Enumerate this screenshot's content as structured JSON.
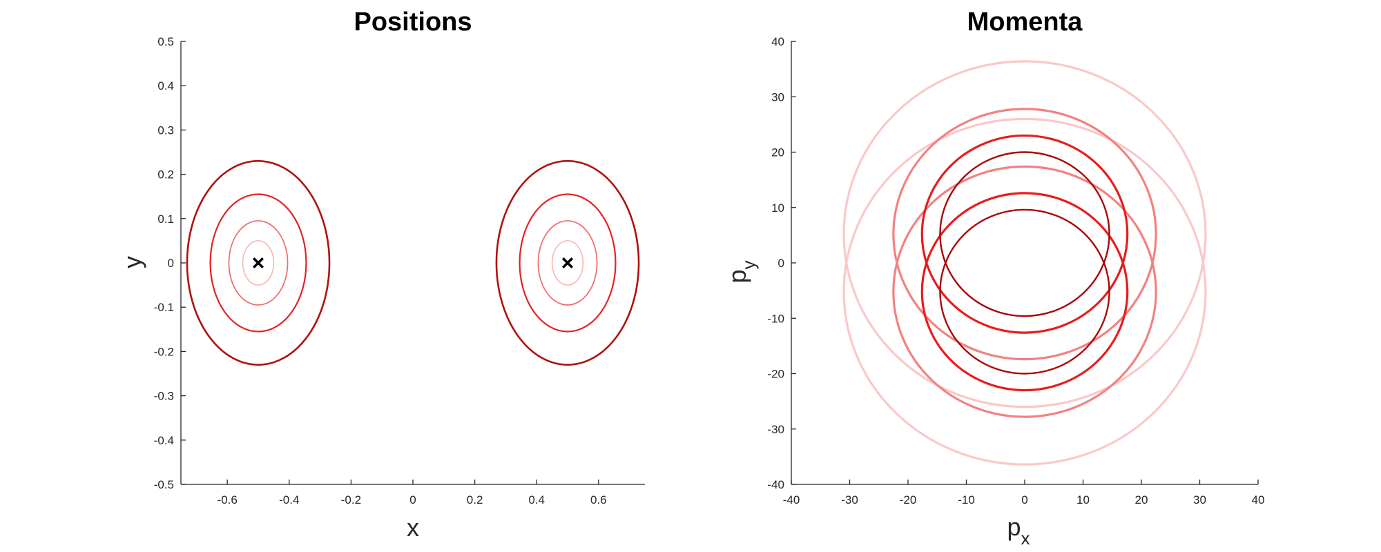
{
  "chart_data": [
    {
      "type": "contour",
      "title": "Positions",
      "xlabel": "x",
      "ylabel": "y",
      "xlim": [
        -0.75,
        0.75
      ],
      "ylim": [
        -0.5,
        0.5
      ],
      "xticks": [
        -0.6,
        -0.4,
        -0.2,
        0,
        0.2,
        0.4,
        0.6
      ],
      "xtick_labels": [
        "-0.6",
        "-0.4",
        "-0.2",
        "0",
        "0.2",
        "0.4",
        "0.6"
      ],
      "yticks": [
        -0.5,
        -0.4,
        -0.3,
        -0.2,
        -0.1,
        0,
        0.1,
        0.2,
        0.3,
        0.4,
        0.5
      ],
      "ytick_labels": [
        "-0.5",
        "-0.4",
        "-0.3",
        "-0.2",
        "-0.1",
        "0",
        "0.1",
        "0.2",
        "0.3",
        "0.4",
        "0.5"
      ],
      "grid": false,
      "series": [
        {
          "cx": -0.5,
          "cy": 0,
          "rx": 0.23,
          "ry": 0.23,
          "color": "#b01010",
          "width": 2.6
        },
        {
          "cx": -0.5,
          "cy": 0,
          "rx": 0.155,
          "ry": 0.155,
          "color": "#e62020",
          "width": 2.2
        },
        {
          "cx": -0.5,
          "cy": 0,
          "rx": 0.095,
          "ry": 0.095,
          "color": "#f07070",
          "width": 1.8
        },
        {
          "cx": -0.5,
          "cy": 0,
          "rx": 0.05,
          "ry": 0.05,
          "color": "#f8b0b0",
          "width": 1.5
        },
        {
          "cx": 0.5,
          "cy": 0,
          "rx": 0.23,
          "ry": 0.23,
          "color": "#b01010",
          "width": 2.6
        },
        {
          "cx": 0.5,
          "cy": 0,
          "rx": 0.155,
          "ry": 0.155,
          "color": "#e62020",
          "width": 2.2
        },
        {
          "cx": 0.5,
          "cy": 0,
          "rx": 0.095,
          "ry": 0.095,
          "color": "#f07070",
          "width": 1.8
        },
        {
          "cx": 0.5,
          "cy": 0,
          "rx": 0.05,
          "ry": 0.05,
          "color": "#f8b0b0",
          "width": 1.5
        }
      ],
      "markers": [
        {
          "x": -0.5,
          "y": 0,
          "symbol": "x",
          "color": "#000000"
        },
        {
          "x": 0.5,
          "y": 0,
          "symbol": "x",
          "color": "#000000"
        }
      ]
    },
    {
      "type": "contour",
      "title": "Momenta",
      "xlabel": "p",
      "xlabel_sub": "x",
      "ylabel": "p",
      "ylabel_sub": "y",
      "xlim": [
        -40,
        40
      ],
      "ylim": [
        -40,
        40
      ],
      "xticks": [
        -40,
        -30,
        -20,
        -10,
        0,
        10,
        20,
        30,
        40
      ],
      "xtick_labels": [
        "-40",
        "-30",
        "-20",
        "-10",
        "0",
        "10",
        "20",
        "30",
        "40"
      ],
      "yticks": [
        -40,
        -30,
        -20,
        -10,
        0,
        10,
        20,
        30,
        40
      ],
      "ytick_labels": [
        "-40",
        "-30",
        "-20",
        "-10",
        "0",
        "10",
        "20",
        "30",
        "40"
      ],
      "grid": false,
      "series": [
        {
          "cx": 0,
          "cy": 5.2,
          "rx": 31,
          "ry": 31.2,
          "color": "#fac8c8",
          "width": 3.2
        },
        {
          "cx": 0,
          "cy": -5.2,
          "rx": 31,
          "ry": 31.2,
          "color": "#fac8c8",
          "width": 3.2
        },
        {
          "cx": 0,
          "cy": 5.2,
          "rx": 22.5,
          "ry": 22.6,
          "color": "#f48080",
          "width": 3.2
        },
        {
          "cx": 0,
          "cy": -5.2,
          "rx": 22.5,
          "ry": 22.6,
          "color": "#f48080",
          "width": 3.2
        },
        {
          "cx": 0,
          "cy": 5.2,
          "rx": 17.6,
          "ry": 17.8,
          "color": "#e81c1c",
          "width": 3.2
        },
        {
          "cx": 0,
          "cy": -5.2,
          "rx": 17.6,
          "ry": 17.8,
          "color": "#e81c1c",
          "width": 3.2
        },
        {
          "cx": 0,
          "cy": 5.2,
          "rx": 14.5,
          "ry": 14.8,
          "color": "#a80808",
          "width": 2.4
        },
        {
          "cx": 0,
          "cy": -5.2,
          "rx": 14.5,
          "ry": 14.8,
          "color": "#a80808",
          "width": 2.4
        }
      ]
    }
  ]
}
